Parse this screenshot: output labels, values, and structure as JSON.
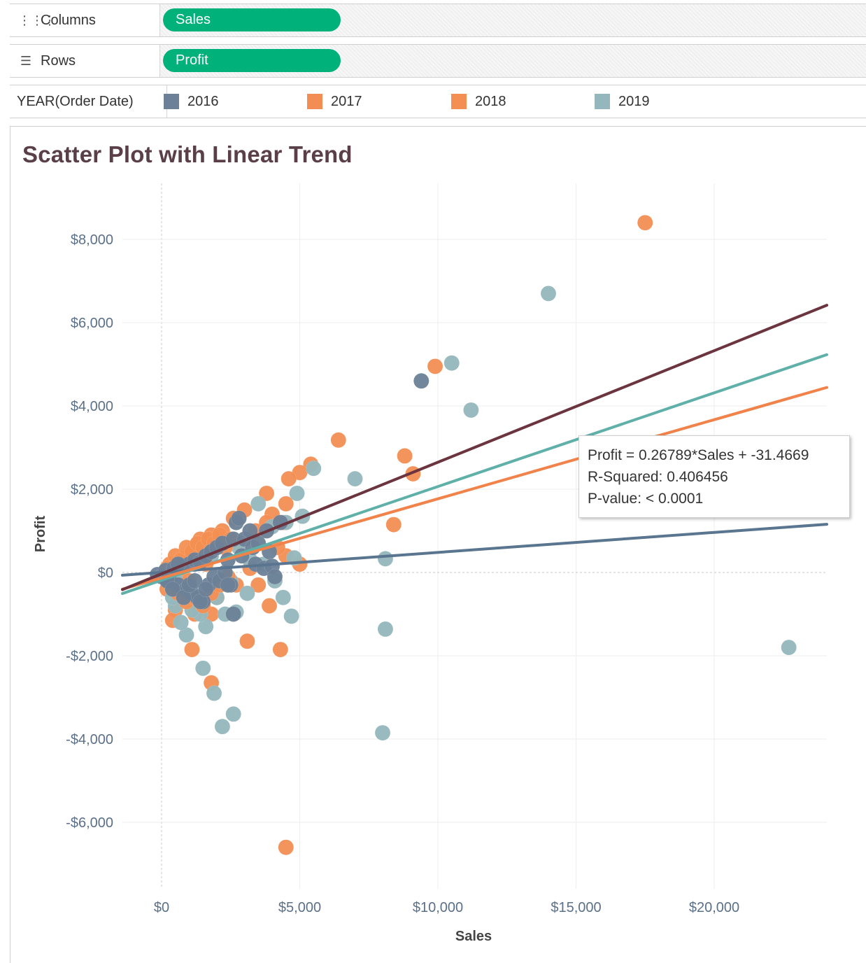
{
  "shelves": {
    "columns": {
      "label": "Columns",
      "pill": "Sales"
    },
    "rows": {
      "label": "Rows",
      "pill": "Profit"
    },
    "color": {
      "label": "YEAR(Order Date)",
      "items": [
        {
          "name": "2016",
          "color": "#6c8197"
        },
        {
          "name": "2017",
          "color": "#f28e54"
        },
        {
          "name": "2018",
          "color": "#f38f52"
        },
        {
          "name": "2019",
          "color": "#93b7bd"
        }
      ]
    }
  },
  "tooltip": {
    "line1": "Profit = 0.26789*Sales + -31.4669",
    "line2": "R-Squared: 0.406456",
    "line3": "P-value: < 0.0001"
  },
  "chart_data": {
    "type": "scatter",
    "title": "Scatter Plot with Linear Trend",
    "xlabel": "Sales",
    "ylabel": "Profit",
    "xlim": [
      -1400,
      24300
    ],
    "ylim": [
      -7500,
      9300
    ],
    "x_ticks": [
      0,
      5000,
      10000,
      15000,
      20000
    ],
    "x_tick_labels": [
      "$0",
      "$5,000",
      "$10,000",
      "$15,000",
      "$20,000"
    ],
    "y_ticks": [
      -6000,
      -4000,
      -2000,
      0,
      2000,
      4000,
      6000,
      8000
    ],
    "y_tick_labels": [
      "-$6,000",
      "-$4,000",
      "-$2,000",
      "$0",
      "$2,000",
      "$4,000",
      "$6,000",
      "$8,000"
    ],
    "grid": true,
    "legend": "top",
    "trend_lines": [
      {
        "name": "2016",
        "color": "#5a7590",
        "slope": 0.048,
        "intercept": 2
      },
      {
        "name": "2019",
        "color": "#5fb0a8",
        "slope": 0.225,
        "intercept": -186
      },
      {
        "name": "2018",
        "color": "#f0824a",
        "slope": 0.19,
        "intercept": -131
      },
      {
        "name": "2017",
        "color": "#6b343e",
        "slope": 0.26789,
        "intercept": -31.4669
      }
    ],
    "series": [
      {
        "name": "2016",
        "color": "#6c8197",
        "points": [
          [
            -150,
            -50
          ],
          [
            0,
            -100
          ],
          [
            150,
            50
          ],
          [
            300,
            -200
          ],
          [
            450,
            100
          ],
          [
            600,
            -300
          ],
          [
            750,
            150
          ],
          [
            900,
            -400
          ],
          [
            1000,
            200
          ],
          [
            1100,
            -500
          ],
          [
            1200,
            300
          ],
          [
            1300,
            -600
          ],
          [
            1400,
            250
          ],
          [
            1500,
            -700
          ],
          [
            1600,
            400
          ],
          [
            1700,
            -300
          ],
          [
            1800,
            500
          ],
          [
            1900,
            -100
          ],
          [
            2000,
            600
          ],
          [
            2100,
            -200
          ],
          [
            2200,
            700
          ],
          [
            2300,
            0
          ],
          [
            2400,
            300
          ],
          [
            2500,
            -300
          ],
          [
            2600,
            800
          ],
          [
            2700,
            1200
          ],
          [
            2800,
            1300
          ],
          [
            2900,
            400
          ],
          [
            3000,
            800
          ],
          [
            3200,
            1000
          ],
          [
            3300,
            600
          ],
          [
            3400,
            200
          ],
          [
            3500,
            700
          ],
          [
            3700,
            100
          ],
          [
            3800,
            1000
          ],
          [
            3900,
            500
          ],
          [
            4000,
            150
          ],
          [
            4100,
            -100
          ],
          [
            4300,
            1200
          ],
          [
            2400,
            -300
          ],
          [
            2600,
            -1000
          ],
          [
            200,
            -200
          ],
          [
            400,
            -400
          ],
          [
            600,
            200
          ],
          [
            800,
            -600
          ],
          [
            1000,
            -300
          ],
          [
            1200,
            -200
          ],
          [
            1400,
            -700
          ],
          [
            1600,
            -400
          ],
          [
            9400,
            4600
          ]
        ]
      },
      {
        "name": "2017",
        "color": "#f28e54",
        "points": [
          [
            17500,
            8400
          ],
          [
            9900,
            4950
          ],
          [
            6400,
            3180
          ],
          [
            8800,
            2800
          ],
          [
            9100,
            2370
          ],
          [
            8400,
            1150
          ],
          [
            5400,
            2600
          ],
          [
            5000,
            2400
          ],
          [
            4600,
            2250
          ],
          [
            4500,
            1650
          ],
          [
            3800,
            1900
          ],
          [
            4000,
            1400
          ],
          [
            4400,
            1200
          ],
          [
            5000,
            200
          ],
          [
            4500,
            400
          ],
          [
            4200,
            600
          ],
          [
            3800,
            1200
          ],
          [
            3400,
            1000
          ],
          [
            3000,
            1500
          ],
          [
            2600,
            1300
          ],
          [
            2200,
            1000
          ],
          [
            1800,
            900
          ],
          [
            1400,
            800
          ],
          [
            1200,
            600
          ],
          [
            1000,
            400
          ],
          [
            800,
            200
          ],
          [
            600,
            0
          ],
          [
            400,
            -200
          ],
          [
            200,
            -400
          ],
          [
            500,
            -900
          ],
          [
            1200,
            -1000
          ],
          [
            1500,
            -700
          ],
          [
            1800,
            -1000
          ],
          [
            2700,
            -300
          ],
          [
            3500,
            -300
          ],
          [
            3900,
            -800
          ],
          [
            1100,
            -1850
          ],
          [
            1800,
            -2650
          ],
          [
            3100,
            -1650
          ],
          [
            4300,
            -1850
          ],
          [
            4500,
            -6600
          ],
          [
            400,
            -1150
          ],
          [
            2000,
            -600
          ],
          [
            3200,
            100
          ],
          [
            2800,
            700
          ]
        ]
      },
      {
        "name": "2018",
        "color": "#f38f52",
        "points": [
          [
            300,
            200
          ],
          [
            500,
            400
          ],
          [
            700,
            300
          ],
          [
            900,
            600
          ],
          [
            1100,
            500
          ],
          [
            1300,
            700
          ],
          [
            1500,
            600
          ],
          [
            1700,
            800
          ],
          [
            1900,
            700
          ],
          [
            2100,
            900
          ],
          [
            2300,
            600
          ],
          [
            2500,
            800
          ],
          [
            300,
            -300
          ],
          [
            600,
            -500
          ],
          [
            900,
            -700
          ],
          [
            1200,
            -600
          ],
          [
            1500,
            -800
          ],
          [
            1800,
            -500
          ],
          [
            2100,
            -300
          ],
          [
            2400,
            -100
          ],
          [
            100,
            0
          ],
          [
            200,
            100
          ],
          [
            800,
            100
          ],
          [
            1000,
            -200
          ],
          [
            1600,
            200
          ]
        ]
      },
      {
        "name": "2019",
        "color": "#93b7bd",
        "points": [
          [
            14000,
            6700
          ],
          [
            10500,
            5030
          ],
          [
            11200,
            3900
          ],
          [
            7000,
            2250
          ],
          [
            5500,
            2500
          ],
          [
            4900,
            1900
          ],
          [
            5100,
            1350
          ],
          [
            4500,
            1200
          ],
          [
            3500,
            1650
          ],
          [
            4800,
            350
          ],
          [
            4100,
            -200
          ],
          [
            8100,
            330
          ],
          [
            4400,
            -600
          ],
          [
            4700,
            -1050
          ],
          [
            8100,
            -1360
          ],
          [
            8000,
            -3850
          ],
          [
            22700,
            -1800
          ],
          [
            3100,
            -500
          ],
          [
            2700,
            -950
          ],
          [
            2300,
            -1000
          ],
          [
            1600,
            -1300
          ],
          [
            900,
            -1500
          ],
          [
            1500,
            -2300
          ],
          [
            1900,
            -2900
          ],
          [
            2600,
            -3400
          ],
          [
            2200,
            -3700
          ],
          [
            700,
            -1200
          ],
          [
            500,
            -800
          ],
          [
            400,
            -600
          ],
          [
            2000,
            -600
          ],
          [
            1400,
            -1000
          ],
          [
            1100,
            -900
          ],
          [
            3200,
            300
          ],
          [
            2800,
            600
          ],
          [
            4000,
            1100
          ],
          [
            1800,
            400
          ],
          [
            1200,
            200
          ],
          [
            600,
            -100
          ],
          [
            2500,
            -200
          ],
          [
            3700,
            200
          ]
        ]
      }
    ]
  }
}
